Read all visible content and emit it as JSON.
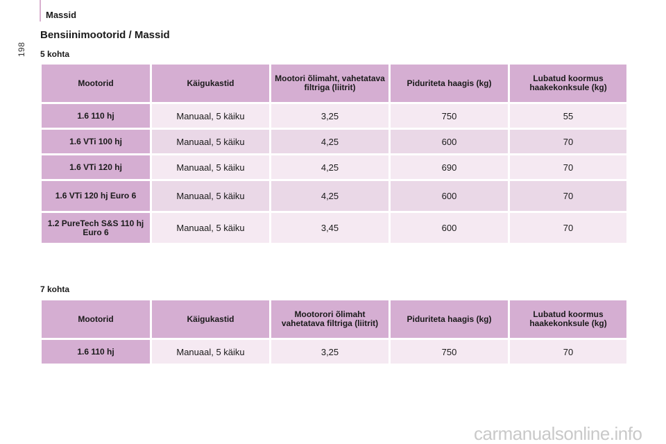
{
  "header": {
    "section_label": "Massid",
    "page_number": "198"
  },
  "title": "Bensiinimootorid / Massid",
  "table5": {
    "label": "5 kohta",
    "headers": [
      "Mootorid",
      "Käigukastid",
      "Mootori õlimaht, vahetatava filtriga (liitrit)",
      "Piduriteta haagis (kg)",
      "Lubatud koormus haakekonksule (kg)"
    ],
    "rows": [
      [
        "1.6 110 hj",
        "Manuaal, 5 käiku",
        "3,25",
        "750",
        "55"
      ],
      [
        "1.6 VTi 100 hj",
        "Manuaal, 5 käiku",
        "4,25",
        "600",
        "70"
      ],
      [
        "1.6 VTi 120 hj",
        "Manuaal, 5 käiku",
        "4,25",
        "690",
        "70"
      ],
      [
        "1.6 VTi 120 hj Euro 6",
        "Manuaal, 5 käiku",
        "4,25",
        "600",
        "70"
      ],
      [
        "1.2 PureTech S&S 110 hj Euro 6",
        "Manuaal, 5 käiku",
        "3,45",
        "600",
        "70"
      ]
    ]
  },
  "table7": {
    "label": "7 kohta",
    "headers": [
      "Mootorid",
      "Käigukastid",
      "Mootorori õlimaht vahetatava filtriga (liitrit)",
      "Piduriteta haagis (kg)",
      "Lubatud koormus haakekonksule (kg)"
    ],
    "rows": [
      [
        "1.6 110 hj",
        "Manuaal, 5 käiku",
        "3,25",
        "750",
        "70"
      ]
    ]
  },
  "watermark": "carmanualsonline.info",
  "colors": {
    "header_bg": "#d5aed2",
    "row_light": "#f5e9f2",
    "row_dark": "#ead8e7"
  }
}
